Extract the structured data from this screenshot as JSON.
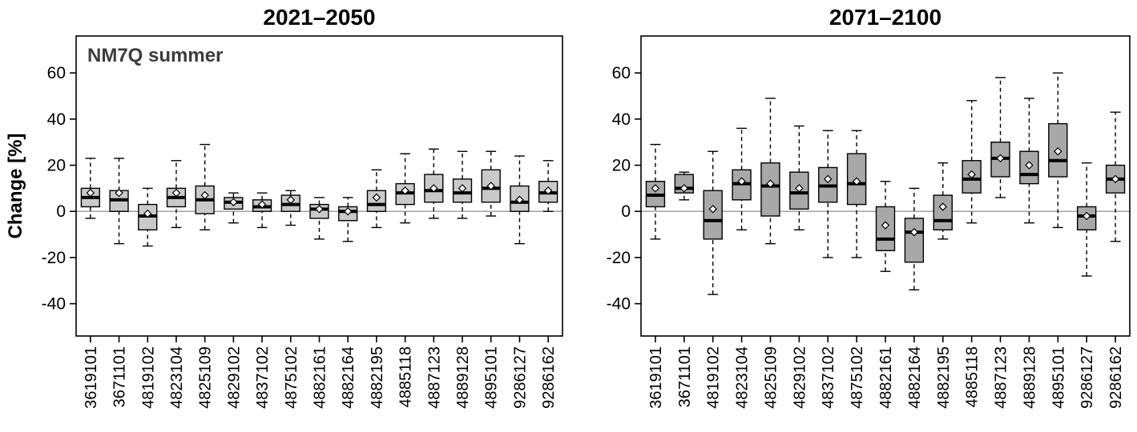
{
  "figure": {
    "ylabel": "Change [%]",
    "panel_label": "NM7Q summer"
  },
  "chart_data": [
    {
      "type": "boxplot",
      "title": "2021–2050",
      "panel_label": "NM7Q summer",
      "ylabel": "Change [%]",
      "ylim": [
        -54,
        76
      ],
      "yticks": [
        -40,
        -20,
        0,
        20,
        40,
        60
      ],
      "grid": false,
      "categories": [
        "3619101",
        "3671101",
        "4819102",
        "4823104",
        "4825109",
        "4829102",
        "4837102",
        "4875102",
        "4882161",
        "4882164",
        "4882195",
        "4885118",
        "4887123",
        "4889128",
        "4895101",
        "9286127",
        "9286162"
      ],
      "boxes": [
        {
          "low": -3,
          "q1": 2,
          "median": 6,
          "q3": 10,
          "high": 23,
          "mean": 8
        },
        {
          "low": -14,
          "q1": 0,
          "median": 5,
          "q3": 9,
          "high": 23,
          "mean": 8
        },
        {
          "low": -15,
          "q1": -8,
          "median": -2,
          "q3": 3,
          "high": 10,
          "mean": -1
        },
        {
          "low": -7,
          "q1": 2,
          "median": 6,
          "q3": 10,
          "high": 22,
          "mean": 8
        },
        {
          "low": -8,
          "q1": -1,
          "median": 5,
          "q3": 11,
          "high": 29,
          "mean": 7
        },
        {
          "low": -5,
          "q1": 1,
          "median": 4,
          "q3": 6,
          "high": 8,
          "mean": 4
        },
        {
          "low": -7,
          "q1": 0,
          "median": 2,
          "q3": 5,
          "high": 8,
          "mean": 3
        },
        {
          "low": -6,
          "q1": 0,
          "median": 3,
          "q3": 7,
          "high": 9,
          "mean": 5
        },
        {
          "low": -12,
          "q1": -3,
          "median": 1,
          "q3": 3,
          "high": 6,
          "mean": 1
        },
        {
          "low": -13,
          "q1": -4,
          "median": 0,
          "q3": 2,
          "high": 6,
          "mean": 0
        },
        {
          "low": -7,
          "q1": 0,
          "median": 3,
          "q3": 9,
          "high": 18,
          "mean": 6
        },
        {
          "low": -5,
          "q1": 3,
          "median": 8,
          "q3": 12,
          "high": 25,
          "mean": 9
        },
        {
          "low": -3,
          "q1": 4,
          "median": 9,
          "q3": 16,
          "high": 27,
          "mean": 10
        },
        {
          "low": -3,
          "q1": 4,
          "median": 8,
          "q3": 14,
          "high": 26,
          "mean": 10
        },
        {
          "low": -2,
          "q1": 4,
          "median": 10,
          "q3": 18,
          "high": 26,
          "mean": 11
        },
        {
          "low": -14,
          "q1": 0,
          "median": 4,
          "q3": 11,
          "high": 24,
          "mean": 5
        },
        {
          "low": 0,
          "q1": 4,
          "median": 8,
          "q3": 13,
          "high": 22,
          "mean": 9
        }
      ],
      "colors": {
        "box_fill": "#c9c9c9",
        "box_stroke": "#000000",
        "zero_line": "#9a9a9a",
        "text": "#000000",
        "panel_label_color": "#3c3c3c"
      }
    },
    {
      "type": "boxplot",
      "title": "2071–2100",
      "panel_label": "",
      "ylabel": "",
      "ylim": [
        -54,
        76
      ],
      "yticks": [
        -40,
        -20,
        0,
        20,
        40,
        60
      ],
      "grid": false,
      "categories": [
        "3619101",
        "3671101",
        "4819102",
        "4823104",
        "4825109",
        "4829102",
        "4837102",
        "4875102",
        "4882161",
        "4882164",
        "4882195",
        "4885118",
        "4887123",
        "4889128",
        "4895101",
        "9286127",
        "9286162"
      ],
      "boxes": [
        {
          "low": -12,
          "q1": 2,
          "median": 7,
          "q3": 13,
          "high": 29,
          "mean": 10
        },
        {
          "low": 5,
          "q1": 8,
          "median": 10,
          "q3": 16,
          "high": 17,
          "mean": 10
        },
        {
          "low": -36,
          "q1": -12,
          "median": -4,
          "q3": 9,
          "high": 26,
          "mean": 1
        },
        {
          "low": -8,
          "q1": 5,
          "median": 12,
          "q3": 18,
          "high": 36,
          "mean": 13
        },
        {
          "low": -14,
          "q1": -2,
          "median": 11,
          "q3": 21,
          "high": 49,
          "mean": 12
        },
        {
          "low": -8,
          "q1": 1,
          "median": 8,
          "q3": 17,
          "high": 37,
          "mean": 10
        },
        {
          "low": -20,
          "q1": 4,
          "median": 11,
          "q3": 19,
          "high": 35,
          "mean": 14
        },
        {
          "low": -20,
          "q1": 3,
          "median": 12,
          "q3": 25,
          "high": 35,
          "mean": 13
        },
        {
          "low": -26,
          "q1": -17,
          "median": -12,
          "q3": 2,
          "high": 13,
          "mean": -6
        },
        {
          "low": -34,
          "q1": -22,
          "median": -9,
          "q3": -3,
          "high": 10,
          "mean": -9
        },
        {
          "low": -12,
          "q1": -8,
          "median": -4,
          "q3": 7,
          "high": 21,
          "mean": 2
        },
        {
          "low": -5,
          "q1": 8,
          "median": 14,
          "q3": 22,
          "high": 48,
          "mean": 16
        },
        {
          "low": 6,
          "q1": 15,
          "median": 23,
          "q3": 30,
          "high": 58,
          "mean": 23
        },
        {
          "low": -5,
          "q1": 12,
          "median": 16,
          "q3": 26,
          "high": 49,
          "mean": 20
        },
        {
          "low": -7,
          "q1": 15,
          "median": 22,
          "q3": 38,
          "high": 60,
          "mean": 26
        },
        {
          "low": -28,
          "q1": -8,
          "median": -2,
          "q3": 2,
          "high": 21,
          "mean": -2
        },
        {
          "low": -13,
          "q1": 8,
          "median": 14,
          "q3": 20,
          "high": 43,
          "mean": 14
        }
      ],
      "colors": {
        "box_fill": "#a8a8a8",
        "box_stroke": "#000000",
        "zero_line": "#9a9a9a",
        "text": "#000000",
        "panel_label_color": "#3c3c3c"
      }
    }
  ]
}
